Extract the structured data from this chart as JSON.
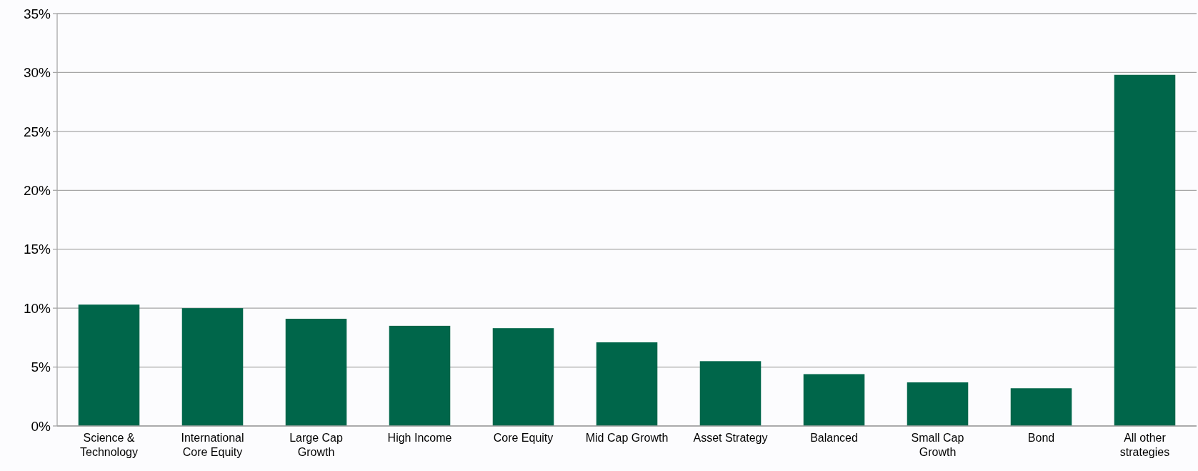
{
  "chart_data": {
    "type": "bar",
    "categories": [
      "Science & Technology",
      "International Core Equity",
      "Large Cap Growth",
      "High Income",
      "Core Equity",
      "Mid Cap Growth",
      "Asset Strategy",
      "Balanced",
      "Small Cap Growth",
      "Bond",
      "All other strategies"
    ],
    "values": [
      10.3,
      10.0,
      9.1,
      8.5,
      8.3,
      7.1,
      5.5,
      4.4,
      3.7,
      3.2,
      29.8
    ],
    "color": "#00664a",
    "ylim": [
      0,
      35
    ],
    "yticks": [
      {
        "value": 0,
        "label": "0%"
      },
      {
        "value": 5,
        "label": "5%"
      },
      {
        "value": 10,
        "label": "10%"
      },
      {
        "value": 15,
        "label": "15%"
      },
      {
        "value": 20,
        "label": "20%"
      },
      {
        "value": 25,
        "label": "25%"
      },
      {
        "value": 30,
        "label": "30%"
      },
      {
        "value": 35,
        "label": "35%"
      }
    ],
    "grid": "y"
  }
}
